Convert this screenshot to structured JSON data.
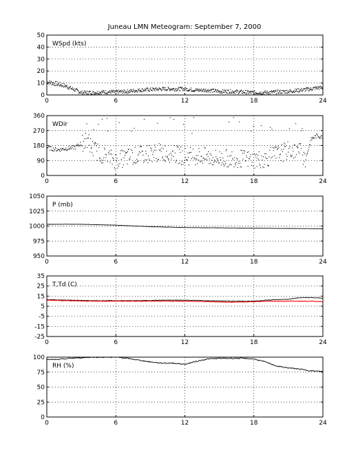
{
  "title": "Juneau LMN Meteogram: September  7, 2000",
  "x_ticks": [
    0,
    6,
    12,
    18,
    24
  ],
  "colors": {
    "series_black": "#000000",
    "series_red": "#ff0000",
    "grid": "#000000"
  },
  "chart_data": [
    {
      "type": "scatter",
      "label": "WSpd (kts)",
      "xlim": [
        0,
        24
      ],
      "ylim": [
        0,
        50
      ],
      "y_ticks": [
        0,
        10,
        20,
        30,
        40,
        50
      ],
      "grid": true,
      "series": [
        {
          "color": "#000000",
          "x": [
            0,
            0.5,
            1,
            1.5,
            2,
            2.5,
            3,
            3.5,
            4,
            5,
            6,
            7,
            8,
            9,
            10,
            11,
            12,
            13,
            14,
            15,
            16,
            17,
            18,
            19,
            20,
            21,
            22,
            22.5,
            23,
            23.5,
            24
          ],
          "y": [
            11,
            10,
            9,
            8,
            6,
            4,
            2,
            2,
            2,
            2.5,
            2.5,
            3,
            4,
            4.5,
            5,
            5,
            5,
            4,
            4,
            3,
            3,
            2.5,
            2,
            2,
            2.5,
            3,
            4,
            4.5,
            5,
            6,
            6
          ]
        }
      ]
    },
    {
      "type": "scatter",
      "label": "WDir",
      "xlim": [
        0,
        24
      ],
      "ylim": [
        0,
        360
      ],
      "y_ticks": [
        0,
        90,
        180,
        270,
        360
      ],
      "grid": true,
      "series": [
        {
          "color": "#000000",
          "x": [
            0,
            0.5,
            1,
            1.5,
            2,
            2.5,
            3,
            3.5,
            4,
            5,
            6,
            7,
            8,
            9,
            10,
            11,
            12,
            13,
            14,
            15,
            16,
            17,
            18,
            19,
            20,
            21,
            22,
            22.5,
            23,
            23.5,
            24
          ],
          "y": [
            170,
            160,
            155,
            160,
            165,
            170,
            195,
            210,
            160,
            120,
            90,
            110,
            120,
            135,
            140,
            130,
            115,
            120,
            110,
            100,
            105,
            100,
            95,
            100,
            130,
            150,
            150,
            100,
            220,
            240,
            230
          ]
        }
      ]
    },
    {
      "type": "line",
      "label": "P (mb)",
      "xlim": [
        0,
        24
      ],
      "ylim": [
        950,
        1050
      ],
      "y_ticks": [
        950,
        975,
        1000,
        1025,
        1050
      ],
      "grid": true,
      "series": [
        {
          "color": "#000000",
          "x": [
            0,
            3,
            6,
            9,
            12,
            15,
            18,
            21,
            24
          ],
          "y": [
            1003,
            1003,
            1001.5,
            999,
            997.5,
            997,
            996.5,
            996,
            995.5
          ]
        }
      ]
    },
    {
      "type": "line",
      "label": "T,Td (C)",
      "xlim": [
        0,
        24
      ],
      "ylim": [
        -25,
        35
      ],
      "y_ticks": [
        -25,
        -15,
        -5,
        5,
        15,
        25,
        35
      ],
      "grid": true,
      "series": [
        {
          "color": "#000000",
          "x": [
            0,
            2,
            4,
            6,
            8,
            10,
            12,
            14,
            16,
            18,
            19,
            20,
            21,
            22,
            23,
            24
          ],
          "y": [
            11.5,
            11,
            10.5,
            10.5,
            10.5,
            11,
            11,
            10.5,
            10,
            10,
            11,
            11.5,
            12,
            13.5,
            13.5,
            13
          ]
        },
        {
          "color": "#ff0000",
          "x": [
            0,
            2,
            4,
            6,
            8,
            10,
            12,
            14,
            16,
            18,
            19,
            20,
            21,
            22,
            23,
            24
          ],
          "y": [
            11,
            10.5,
            10,
            10,
            10,
            10,
            10,
            9.5,
            9,
            9.5,
            10,
            10,
            10,
            10,
            10,
            9.5
          ]
        }
      ]
    },
    {
      "type": "line",
      "label": "RH (%)",
      "xlim": [
        0,
        24
      ],
      "ylim": [
        0,
        100
      ],
      "y_ticks": [
        0,
        25,
        50,
        75,
        100
      ],
      "grid": true,
      "series": [
        {
          "color": "#000000",
          "x": [
            0,
            1,
            2,
            3,
            4,
            5,
            6,
            7,
            8,
            9,
            10,
            11,
            12,
            13,
            14,
            15,
            16,
            17,
            18,
            19,
            20,
            21,
            22,
            23,
            24
          ],
          "y": [
            96,
            96,
            98,
            99,
            100,
            100,
            100,
            98,
            95,
            92,
            90,
            90,
            88,
            93,
            97,
            98,
            98,
            98,
            97,
            92,
            85,
            82,
            80,
            77,
            76
          ]
        }
      ]
    }
  ]
}
